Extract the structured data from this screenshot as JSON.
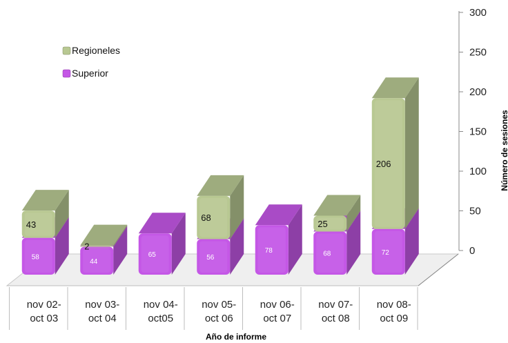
{
  "chart_data": {
    "type": "bar",
    "stacked": true,
    "three_d": true,
    "categories": [
      [
        "nov 02-",
        "oct 03"
      ],
      [
        "nov 03-",
        "oct 04"
      ],
      [
        "nov 04-",
        "oct05"
      ],
      [
        "nov 05-",
        "oct 06"
      ],
      [
        "nov 06-",
        "oct 07"
      ],
      [
        "nov 07-",
        "oct 08"
      ],
      [
        "nov 08-",
        "oct 09"
      ]
    ],
    "series": [
      {
        "name": "Superior",
        "values": [
          58,
          44,
          65,
          56,
          78,
          68,
          72
        ],
        "labels": [
          "58",
          "44",
          "65",
          "56",
          "78",
          "68",
          "72"
        ]
      },
      {
        "name": "Regioneles",
        "values": [
          43,
          2,
          0,
          68,
          0,
          25,
          206
        ],
        "labels": [
          "43",
          "2",
          "",
          "68",
          "",
          "25",
          "206"
        ]
      }
    ],
    "xlabel": "Año de informe",
    "ylabel": "Número de sesiones",
    "ylim": [
      0,
      300
    ],
    "yticks": [
      "0",
      "50",
      "100",
      "150",
      "200",
      "250",
      "300"
    ],
    "y_axis_side": "right",
    "legend": {
      "placement": "upper-left",
      "entries": [
        "Regioneles",
        "Superior"
      ]
    },
    "colors": {
      "Superior": "#c457e6",
      "Regioneles": "#b8c892",
      "floor": "#efefef",
      "axis": "#888888"
    },
    "grid": false
  }
}
